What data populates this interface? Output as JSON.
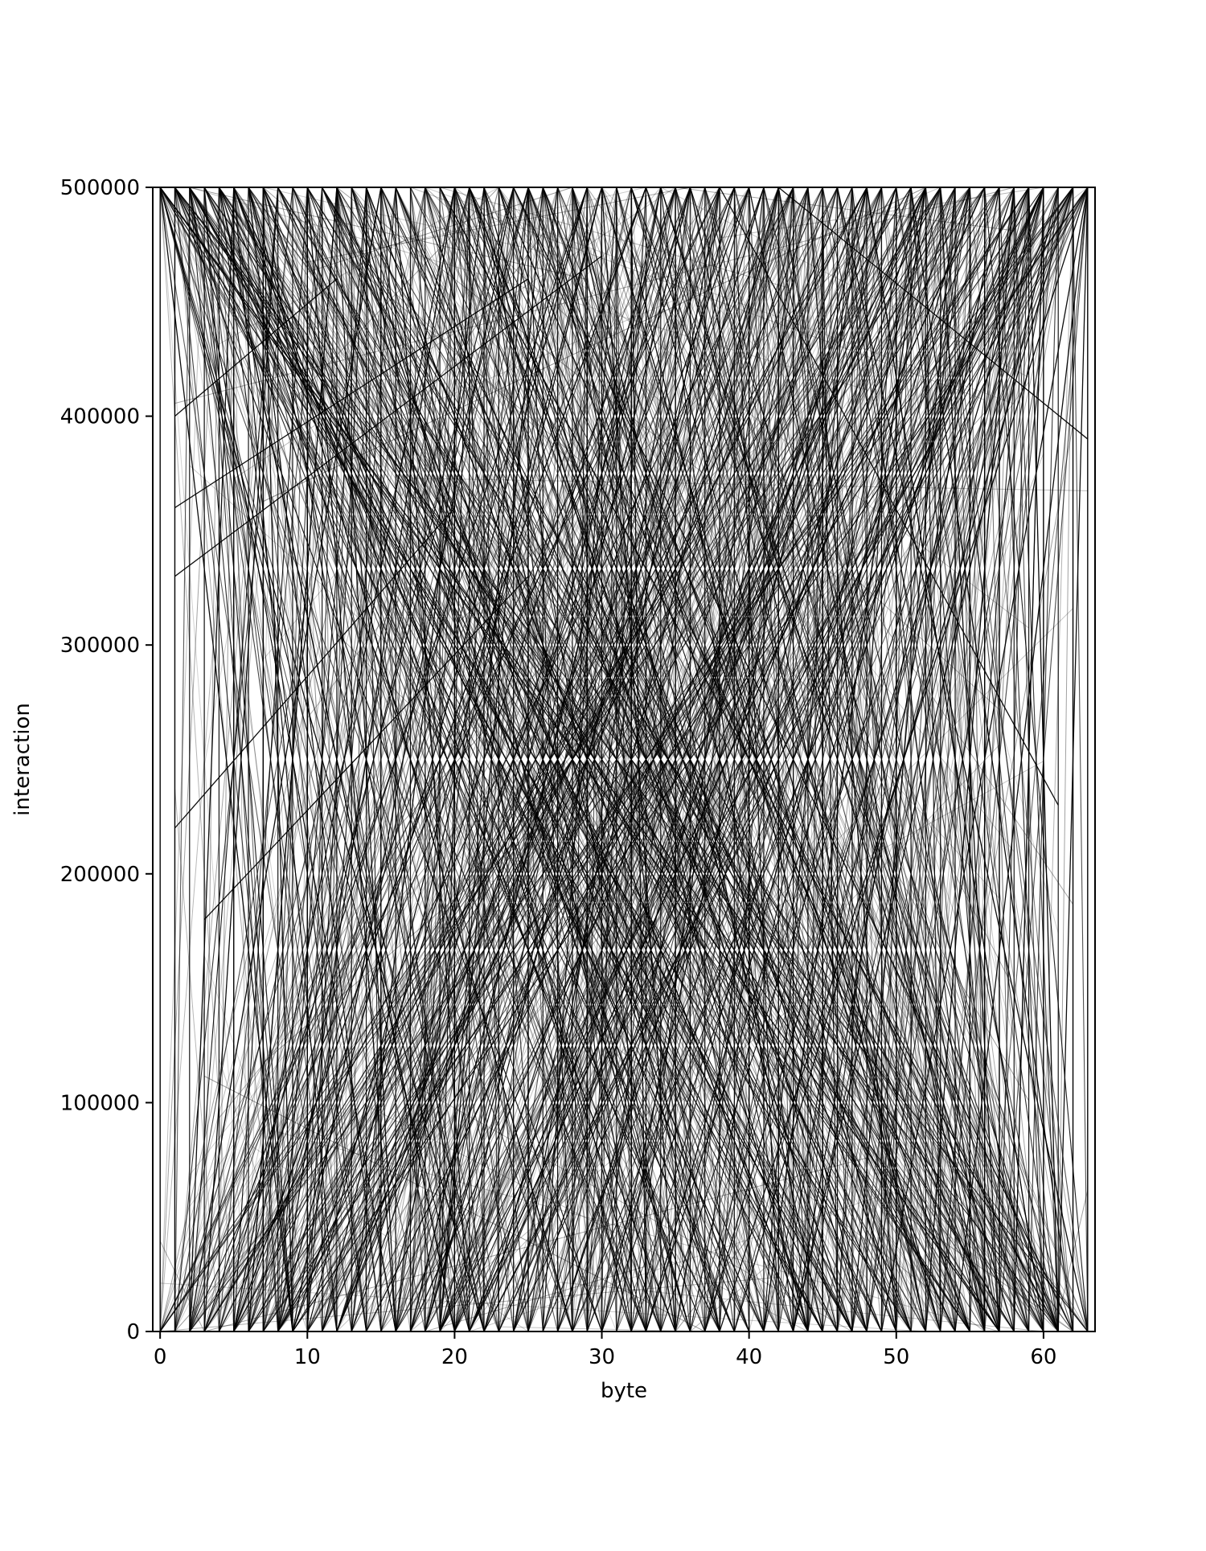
{
  "chart_data": {
    "type": "line",
    "title": "",
    "xlabel": "byte",
    "ylabel": "interaction",
    "xlim": [
      -0.5,
      63.5
    ],
    "ylim": [
      0,
      500000
    ],
    "x_ticks": [
      0,
      10,
      20,
      30,
      40,
      50,
      60
    ],
    "x_tick_labels": [
      "0",
      "10",
      "20",
      "30",
      "40",
      "50",
      "60"
    ],
    "y_ticks": [
      0,
      100000,
      200000,
      300000,
      400000,
      500000
    ],
    "y_tick_labels": [
      "0",
      "100000",
      "200000",
      "300000",
      "400000",
      "500000"
    ],
    "grid": false,
    "legend": "none",
    "line_color": "#000000",
    "description_of_data": "Dense web of thin black line segments connecting byte positions (0-63) between interaction values 0 and 500000; segments mostly run from the bottom axis (interaction 0) to the top axis (interaction 500000), with varying opacity.",
    "segments": [
      [
        [
          0,
          0
        ],
        [
          0,
          500000
        ]
      ],
      [
        [
          0,
          500000
        ],
        [
          9,
          0
        ]
      ],
      [
        [
          0,
          500000
        ],
        [
          22,
          0
        ]
      ],
      [
        [
          0,
          500000
        ],
        [
          35,
          200000
        ]
      ],
      [
        [
          1,
          0
        ],
        [
          1,
          500000
        ]
      ],
      [
        [
          1,
          220000
        ],
        [
          20,
          360000
        ]
      ],
      [
        [
          1,
          330000
        ],
        [
          30,
          470000
        ]
      ],
      [
        [
          1,
          360000
        ],
        [
          25,
          460000
        ]
      ],
      [
        [
          1,
          400000
        ],
        [
          12,
          460000
        ]
      ],
      [
        [
          2,
          0
        ],
        [
          5,
          500000
        ]
      ],
      [
        [
          2,
          0
        ],
        [
          15,
          500000
        ]
      ],
      [
        [
          3,
          0
        ],
        [
          8,
          500000
        ]
      ],
      [
        [
          3,
          180000
        ],
        [
          25,
          330000
        ]
      ],
      [
        [
          4,
          500000
        ],
        [
          20,
          0
        ]
      ],
      [
        [
          5,
          0
        ],
        [
          5,
          500000
        ]
      ],
      [
        [
          5,
          500000
        ],
        [
          35,
          0
        ]
      ],
      [
        [
          6,
          0
        ],
        [
          12,
          500000
        ]
      ],
      [
        [
          6,
          500000
        ],
        [
          28,
          0
        ]
      ],
      [
        [
          7,
          0
        ],
        [
          7,
          500000
        ]
      ],
      [
        [
          7,
          500000
        ],
        [
          9,
          0
        ]
      ],
      [
        [
          8,
          0
        ],
        [
          20,
          500000
        ]
      ],
      [
        [
          8,
          500000
        ],
        [
          46,
          0
        ]
      ],
      [
        [
          9,
          0
        ],
        [
          24,
          500000
        ]
      ],
      [
        [
          10,
          0
        ],
        [
          10,
          500000
        ]
      ],
      [
        [
          10,
          500000
        ],
        [
          16,
          0
        ]
      ],
      [
        [
          11,
          0
        ],
        [
          30,
          500000
        ]
      ],
      [
        [
          12,
          500000
        ],
        [
          40,
          0
        ]
      ],
      [
        [
          13,
          0
        ],
        [
          22,
          500000
        ]
      ],
      [
        [
          14,
          500000
        ],
        [
          44,
          0
        ]
      ],
      [
        [
          15,
          0
        ],
        [
          15,
          500000
        ]
      ],
      [
        [
          16,
          500000
        ],
        [
          50,
          0
        ]
      ],
      [
        [
          17,
          0
        ],
        [
          36,
          500000
        ]
      ],
      [
        [
          18,
          500000
        ],
        [
          38,
          0
        ]
      ],
      [
        [
          19,
          0
        ],
        [
          26,
          500000
        ]
      ],
      [
        [
          20,
          0
        ],
        [
          20,
          500000
        ]
      ],
      [
        [
          21,
          500000
        ],
        [
          47,
          0
        ]
      ],
      [
        [
          22,
          0
        ],
        [
          42,
          500000
        ]
      ],
      [
        [
          23,
          500000
        ],
        [
          57,
          0
        ]
      ],
      [
        [
          24,
          0
        ],
        [
          38,
          500000
        ]
      ],
      [
        [
          25,
          0
        ],
        [
          25,
          500000
        ]
      ],
      [
        [
          26,
          500000
        ],
        [
          55,
          0
        ]
      ],
      [
        [
          27,
          0
        ],
        [
          52,
          500000
        ]
      ],
      [
        [
          28,
          500000
        ],
        [
          45,
          0
        ]
      ],
      [
        [
          29,
          0
        ],
        [
          29,
          500000
        ]
      ],
      [
        [
          30,
          0
        ],
        [
          48,
          500000
        ]
      ],
      [
        [
          31,
          500000
        ],
        [
          50,
          0
        ]
      ],
      [
        [
          32,
          0
        ],
        [
          32,
          500000
        ]
      ],
      [
        [
          33,
          0
        ],
        [
          55,
          500000
        ]
      ],
      [
        [
          34,
          500000
        ],
        [
          58,
          0
        ]
      ],
      [
        [
          35,
          0
        ],
        [
          35,
          500000
        ]
      ],
      [
        [
          36,
          500000
        ],
        [
          52,
          0
        ]
      ],
      [
        [
          37,
          0
        ],
        [
          60,
          500000
        ]
      ],
      [
        [
          38,
          500000
        ],
        [
          61,
          230000
        ]
      ],
      [
        [
          39,
          0
        ],
        [
          62,
          500000
        ]
      ],
      [
        [
          40,
          0
        ],
        [
          40,
          500000
        ]
      ],
      [
        [
          41,
          0
        ],
        [
          52,
          500000
        ]
      ],
      [
        [
          42,
          500000
        ],
        [
          63,
          390000
        ]
      ],
      [
        [
          43,
          0
        ],
        [
          57,
          500000
        ]
      ],
      [
        [
          44,
          500000
        ],
        [
          50,
          0
        ]
      ],
      [
        [
          45,
          0
        ],
        [
          45,
          500000
        ]
      ],
      [
        [
          46,
          500000
        ],
        [
          63,
          0
        ]
      ],
      [
        [
          47,
          0
        ],
        [
          54,
          500000
        ]
      ],
      [
        [
          48,
          500000
        ],
        [
          60,
          0
        ]
      ],
      [
        [
          49,
          0
        ],
        [
          63,
          500000
        ]
      ],
      [
        [
          50,
          0
        ],
        [
          50,
          500000
        ]
      ],
      [
        [
          51,
          500000
        ],
        [
          62,
          0
        ]
      ],
      [
        [
          52,
          0
        ],
        [
          58,
          500000
        ]
      ],
      [
        [
          53,
          500000
        ],
        [
          57,
          0
        ]
      ],
      [
        [
          54,
          0
        ],
        [
          63,
          500000
        ]
      ],
      [
        [
          55,
          0
        ],
        [
          55,
          500000
        ]
      ],
      [
        [
          56,
          0
        ],
        [
          56,
          500000
        ]
      ],
      [
        [
          57,
          0
        ],
        [
          57,
          500000
        ]
      ],
      [
        [
          58,
          0
        ],
        [
          60,
          500000
        ]
      ],
      [
        [
          59,
          500000
        ],
        [
          61,
          0
        ]
      ],
      [
        [
          60,
          0
        ],
        [
          60,
          500000
        ]
      ],
      [
        [
          61,
          0
        ],
        [
          63,
          500000
        ]
      ],
      [
        [
          62,
          0
        ],
        [
          62,
          500000
        ]
      ],
      [
        [
          63,
          0
        ],
        [
          63,
          500000
        ]
      ],
      [
        [
          0,
          500000
        ],
        [
          57,
          0
        ]
      ],
      [
        [
          2,
          500000
        ],
        [
          45,
          0
        ]
      ],
      [
        [
          5,
          500000
        ],
        [
          41,
          0
        ]
      ],
      [
        [
          9,
          0
        ],
        [
          35,
          500000
        ]
      ],
      [
        [
          12,
          0
        ],
        [
          40,
          500000
        ]
      ],
      [
        [
          14,
          0
        ],
        [
          53,
          500000
        ]
      ],
      [
        [
          19,
          500000
        ],
        [
          61,
          0
        ]
      ],
      [
        [
          21,
          0
        ],
        [
          56,
          500000
        ]
      ],
      [
        [
          24,
          500000
        ],
        [
          62,
          0
        ]
      ],
      [
        [
          29,
          500000
        ],
        [
          8,
          0
        ]
      ],
      [
        [
          33,
          500000
        ],
        [
          5,
          0
        ]
      ],
      [
        [
          36,
          0
        ],
        [
          13,
          500000
        ]
      ],
      [
        [
          41,
          500000
        ],
        [
          18,
          0
        ]
      ],
      [
        [
          44,
          0
        ],
        [
          22,
          500000
        ]
      ],
      [
        [
          48,
          0
        ],
        [
          28,
          500000
        ]
      ],
      [
        [
          53,
          0
        ],
        [
          30,
          500000
        ]
      ],
      [
        [
          58,
          500000
        ],
        [
          33,
          0
        ]
      ],
      [
        [
          63,
          500000
        ],
        [
          38,
          0
        ]
      ],
      [
        [
          61,
          500000
        ],
        [
          43,
          0
        ]
      ],
      [
        [
          56,
          500000
        ],
        [
          21,
          0
        ]
      ],
      [
        [
          52,
          500000
        ],
        [
          17,
          0
        ]
      ],
      [
        [
          47,
          500000
        ],
        [
          11,
          0
        ]
      ]
    ]
  }
}
